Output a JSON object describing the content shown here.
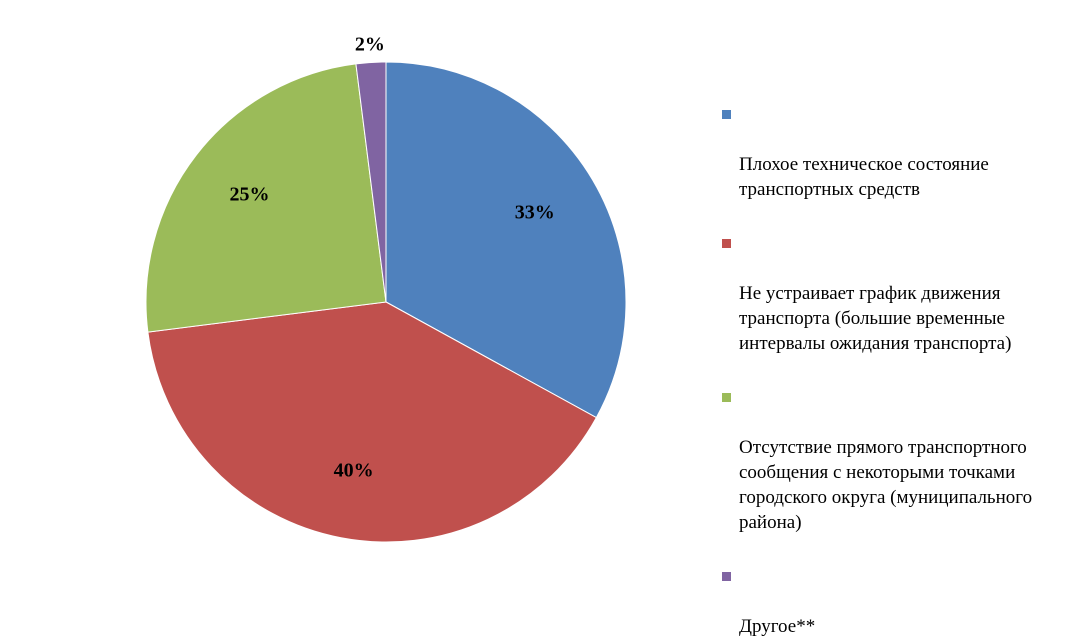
{
  "chart_data": {
    "type": "pie",
    "title": "",
    "slices": [
      {
        "label": "Плохое техническое состояние\nтранспортных средств",
        "value": 33,
        "value_label": "33%",
        "color": "#4F81BD"
      },
      {
        "label": "Не устраивает  график движения\nтранспорта  (большие временные\nинтервалы  ожидания транспорта)",
        "value": 40,
        "value_label": "40%",
        "color": "#C0504D"
      },
      {
        "label": "Отсутствие  прямого транспортного\nсообщения с  некоторыми точками\nгородского округа (муниципального\nрайона)",
        "value": 25,
        "value_label": "25%",
        "color": "#9BBB59"
      },
      {
        "label": "Другое**",
        "value": 2,
        "value_label": "2%",
        "color": "#8064A2"
      }
    ],
    "start_angle": "12 o'clock",
    "direction": "clockwise",
    "legend_position": "right"
  }
}
